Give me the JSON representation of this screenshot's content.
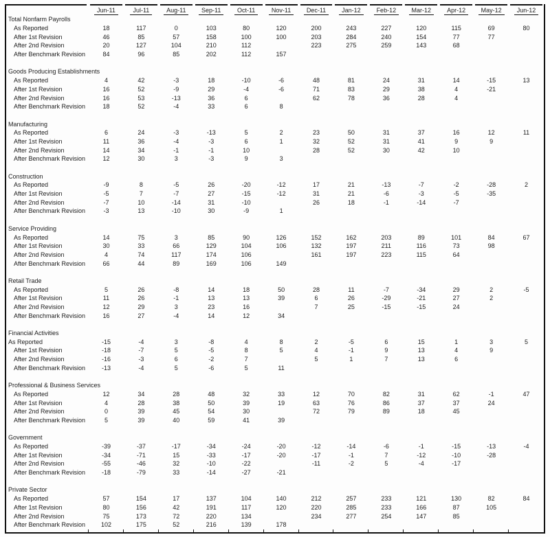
{
  "table": {
    "columns": [
      "Jun-11",
      "Jul-11",
      "Aug-11",
      "Sep-11",
      "Oct-11",
      "Nov-11",
      "Dec-11",
      "Jan-12",
      "Feb-12",
      "Mar-12",
      "Apr-12",
      "May-12",
      "Jun-12"
    ],
    "sections": [
      {
        "title": "Total Nonfarm Payrolls",
        "rows": [
          {
            "label": "As Reported",
            "values": [
              "18",
              "117",
              "0",
              "103",
              "80",
              "120",
              "200",
              "243",
              "227",
              "120",
              "115",
              "69",
              "80"
            ]
          },
          {
            "label": "After 1st Revision",
            "values": [
              "46",
              "85",
              "57",
              "158",
              "100",
              "100",
              "203",
              "284",
              "240",
              "154",
              "77",
              "77",
              ""
            ]
          },
          {
            "label": "After 2nd Revision",
            "values": [
              "20",
              "127",
              "104",
              "210",
              "112",
              "",
              "223",
              "275",
              "259",
              "143",
              "68",
              "",
              ""
            ]
          },
          {
            "label": "After Benchmark Revision",
            "values": [
              "84",
              "96",
              "85",
              "202",
              "112",
              "157",
              "",
              "",
              "",
              "",
              "",
              "",
              ""
            ]
          }
        ]
      },
      {
        "title": "Goods Producing Establishments",
        "rows": [
          {
            "label": "As Reported",
            "values": [
              "4",
              "42",
              "-3",
              "18",
              "-10",
              "-6",
              "48",
              "81",
              "24",
              "31",
              "14",
              "-15",
              "13"
            ]
          },
          {
            "label": "After 1st Revision",
            "values": [
              "16",
              "52",
              "-9",
              "29",
              "-4",
              "-6",
              "71",
              "83",
              "29",
              "38",
              "4",
              "-21",
              ""
            ]
          },
          {
            "label": "After 2nd Revision",
            "values": [
              "16",
              "53",
              "-13",
              "36",
              "6",
              "",
              "62",
              "78",
              "36",
              "28",
              "4",
              "",
              ""
            ]
          },
          {
            "label": "After Benchmark Revision",
            "values": [
              "18",
              "52",
              "-4",
              "33",
              "6",
              "8",
              "",
              "",
              "",
              "",
              "",
              "",
              ""
            ]
          }
        ]
      },
      {
        "title": "Manufacturing",
        "rows": [
          {
            "label": "As Reported",
            "values": [
              "6",
              "24",
              "-3",
              "-13",
              "5",
              "2",
              "23",
              "50",
              "31",
              "37",
              "16",
              "12",
              "11"
            ]
          },
          {
            "label": "After 1st Revision",
            "values": [
              "11",
              "36",
              "-4",
              "-3",
              "6",
              "1",
              "32",
              "52",
              "31",
              "41",
              "9",
              "9",
              ""
            ]
          },
          {
            "label": "After 2nd Revision",
            "values": [
              "14",
              "34",
              "-1",
              "-1",
              "10",
              "",
              "28",
              "52",
              "30",
              "42",
              "10",
              "",
              ""
            ]
          },
          {
            "label": "After Benchmark Revision",
            "values": [
              "12",
              "30",
              "3",
              "-3",
              "9",
              "3",
              "",
              "",
              "",
              "",
              "",
              "",
              ""
            ]
          }
        ]
      },
      {
        "title": "Construction",
        "rows": [
          {
            "label": "As Reported",
            "values": [
              "-9",
              "8",
              "-5",
              "26",
              "-20",
              "-12",
              "17",
              "21",
              "-13",
              "-7",
              "-2",
              "-28",
              "2"
            ]
          },
          {
            "label": "After 1st Revision",
            "values": [
              "-5",
              "7",
              "-7",
              "27",
              "-15",
              "-12",
              "31",
              "21",
              "-6",
              "-3",
              "-5",
              "-35",
              ""
            ]
          },
          {
            "label": "After 2nd Revision",
            "values": [
              "-7",
              "10",
              "-14",
              "31",
              "-10",
              "",
              "26",
              "18",
              "-1",
              "-14",
              "-7",
              "",
              ""
            ]
          },
          {
            "label": "After Benchmark Revision",
            "values": [
              "-3",
              "13",
              "-10",
              "30",
              "-9",
              "1",
              "",
              "",
              "",
              "",
              "",
              "",
              ""
            ]
          }
        ]
      },
      {
        "title": "Service Providing",
        "rows": [
          {
            "label": "As Reported",
            "values": [
              "14",
              "75",
              "3",
              "85",
              "90",
              "126",
              "152",
              "162",
              "203",
              "89",
              "101",
              "84",
              "67"
            ]
          },
          {
            "label": "After 1st Revision",
            "values": [
              "30",
              "33",
              "66",
              "129",
              "104",
              "106",
              "132",
              "197",
              "211",
              "116",
              "73",
              "98",
              ""
            ]
          },
          {
            "label": "After 2nd Revision",
            "values": [
              "4",
              "74",
              "117",
              "174",
              "106",
              "",
              "161",
              "197",
              "223",
              "115",
              "64",
              "",
              ""
            ]
          },
          {
            "label": "After Benchmark Revision",
            "values": [
              "66",
              "44",
              "89",
              "169",
              "106",
              "149",
              "",
              "",
              "",
              "",
              "",
              "",
              ""
            ]
          }
        ]
      },
      {
        "title": "Retail Trade",
        "rows": [
          {
            "label": "As Reported",
            "values": [
              "5",
              "26",
              "-8",
              "14",
              "18",
              "50",
              "28",
              "11",
              "-7",
              "-34",
              "29",
              "2",
              "-5"
            ]
          },
          {
            "label": "After 1st Revision",
            "values": [
              "11",
              "26",
              "-1",
              "13",
              "13",
              "39",
              "6",
              "26",
              "-29",
              "-21",
              "27",
              "2",
              ""
            ]
          },
          {
            "label": "After 2nd Revision",
            "values": [
              "12",
              "29",
              "3",
              "23",
              "16",
              "",
              "7",
              "25",
              "-15",
              "-15",
              "24",
              "",
              ""
            ]
          },
          {
            "label": "After Benchmark Revision",
            "values": [
              "16",
              "27",
              "-4",
              "14",
              "12",
              "34",
              "",
              "",
              "",
              "",
              "",
              "",
              ""
            ]
          }
        ]
      },
      {
        "title": "Financial Activities",
        "rows": [
          {
            "label": "As Reported",
            "indent": 0,
            "values": [
              "-15",
              "-4",
              "3",
              "-8",
              "4",
              "8",
              "2",
              "-5",
              "6",
              "15",
              "1",
              "3",
              "5"
            ]
          },
          {
            "label": "After 1st Revision",
            "values": [
              "-18",
              "-7",
              "5",
              "-5",
              "8",
              "5",
              "4",
              "-1",
              "9",
              "13",
              "4",
              "9",
              ""
            ]
          },
          {
            "label": "After 2nd Revision",
            "values": [
              "-16",
              "-3",
              "6",
              "-2",
              "7",
              "",
              "5",
              "1",
              "7",
              "13",
              "6",
              "",
              ""
            ]
          },
          {
            "label": "After Benchmark Revision",
            "values": [
              "-13",
              "-4",
              "5",
              "-6",
              "5",
              "11",
              "",
              "",
              "",
              "",
              "",
              "",
              ""
            ]
          }
        ]
      },
      {
        "title": "Professional & Business Services",
        "rows": [
          {
            "label": "As Reported",
            "values": [
              "12",
              "34",
              "28",
              "48",
              "32",
              "33",
              "12",
              "70",
              "82",
              "31",
              "62",
              "-1",
              "47"
            ]
          },
          {
            "label": "After 1st Revision",
            "values": [
              "4",
              "28",
              "38",
              "50",
              "39",
              "19",
              "63",
              "76",
              "86",
              "37",
              "37",
              "24",
              ""
            ]
          },
          {
            "label": "After 2nd Revision",
            "values": [
              "0",
              "39",
              "45",
              "54",
              "30",
              "",
              "72",
              "79",
              "89",
              "18",
              "45",
              "",
              ""
            ]
          },
          {
            "label": "After Benchmark Revision",
            "values": [
              "5",
              "39",
              "40",
              "59",
              "41",
              "39",
              "",
              "",
              "",
              "",
              "",
              "",
              ""
            ]
          }
        ]
      },
      {
        "title": "Government",
        "rows": [
          {
            "label": "As Reported",
            "values": [
              "-39",
              "-37",
              "-17",
              "-34",
              "-24",
              "-20",
              "-12",
              "-14",
              "-6",
              "-1",
              "-15",
              "-13",
              "-4"
            ]
          },
          {
            "label": "After 1st Revision",
            "values": [
              "-34",
              "-71",
              "15",
              "-33",
              "-17",
              "-20",
              "-17",
              "-1",
              "7",
              "-12",
              "-10",
              "-28",
              ""
            ]
          },
          {
            "label": "After 2nd Revision",
            "values": [
              "-55",
              "-46",
              "32",
              "-10",
              "-22",
              "",
              "-11",
              "-2",
              "5",
              "-4",
              "-17",
              "",
              ""
            ]
          },
          {
            "label": "After Benchmark Revision",
            "values": [
              "-18",
              "-79",
              "33",
              "-14",
              "-27",
              "-21",
              "",
              "",
              "",
              "",
              "",
              "",
              ""
            ]
          }
        ]
      },
      {
        "title": "Private Sector",
        "rows": [
          {
            "label": "As Reported",
            "values": [
              "57",
              "154",
              "17",
              "137",
              "104",
              "140",
              "212",
              "257",
              "233",
              "121",
              "130",
              "82",
              "84"
            ]
          },
          {
            "label": "After 1st Revision",
            "values": [
              "80",
              "156",
              "42",
              "191",
              "117",
              "120",
              "220",
              "285",
              "233",
              "166",
              "87",
              "105",
              ""
            ]
          },
          {
            "label": "After 2nd Revision",
            "values": [
              "75",
              "173",
              "72",
              "220",
              "134",
              "",
              "234",
              "277",
              "254",
              "147",
              "85",
              "",
              ""
            ]
          },
          {
            "label": "After Benchmark Revision",
            "values": [
              "102",
              "175",
              "52",
              "216",
              "139",
              "178",
              "",
              "",
              "",
              "",
              "",
              "",
              ""
            ]
          }
        ]
      }
    ],
    "colors": {
      "text": "#1b1b1b",
      "border": "#111111",
      "background": "#fdfdfd"
    }
  }
}
